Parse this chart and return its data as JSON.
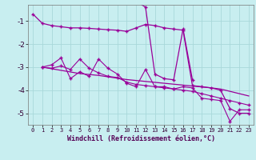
{
  "x": [
    0,
    1,
    2,
    3,
    4,
    5,
    6,
    7,
    8,
    9,
    10,
    11,
    12,
    13,
    14,
    15,
    16,
    17,
    18,
    19,
    20,
    21,
    22,
    23
  ],
  "line1": [
    -0.7,
    -1.1,
    -1.2,
    -1.25,
    -1.3,
    -1.3,
    -1.32,
    -1.35,
    -1.38,
    -1.4,
    -1.45,
    -1.3,
    -1.15,
    -1.2,
    -1.3,
    -1.35,
    -1.4,
    -3.8,
    -3.85,
    -3.9,
    -4.0,
    -4.8,
    -5.0,
    -5.0
  ],
  "line2": [
    null,
    null,
    null,
    null,
    null,
    null,
    null,
    null,
    null,
    null,
    null,
    -0.15,
    -0.4,
    -3.3,
    -3.5,
    -3.55,
    -1.35,
    -3.55,
    null,
    null,
    null,
    null,
    null,
    null
  ],
  "line3": [
    null,
    -3.0,
    -2.9,
    -2.6,
    -3.5,
    -3.2,
    -3.4,
    -2.65,
    -3.05,
    -3.3,
    -3.7,
    -3.85,
    -3.1,
    -3.85,
    -3.85,
    -3.95,
    -3.85,
    -3.9,
    -4.35,
    -4.4,
    -4.45,
    -5.35,
    -4.85,
    -4.85
  ],
  "line4": [
    null,
    -3.0,
    -3.05,
    -2.95,
    -3.1,
    -2.65,
    -3.05,
    -3.25,
    -3.4,
    -3.45,
    -3.65,
    -3.75,
    -3.8,
    -3.85,
    -3.9,
    -3.95,
    -4.0,
    -4.05,
    -4.15,
    -4.25,
    -4.35,
    -4.45,
    -4.55,
    -4.65
  ],
  "line5": [
    null,
    -3.0,
    -3.07,
    -3.14,
    -3.21,
    -3.28,
    -3.32,
    -3.36,
    -3.42,
    -3.48,
    -3.54,
    -3.58,
    -3.62,
    -3.66,
    -3.7,
    -3.74,
    -3.78,
    -3.82,
    -3.86,
    -3.9,
    -3.95,
    -4.05,
    -4.15,
    -4.25
  ],
  "line_color": "#990099",
  "bg_color": "#c8eef0",
  "grid_color": "#a8d8da",
  "xlabel": "Windchill (Refroidissement éolien,°C)",
  "ylim": [
    -5.5,
    -0.3
  ],
  "xlim": [
    -0.5,
    23.5
  ],
  "yticks": [
    -5,
    -4,
    -3,
    -2,
    -1
  ],
  "xticks": [
    0,
    1,
    2,
    3,
    4,
    5,
    6,
    7,
    8,
    9,
    10,
    11,
    12,
    13,
    14,
    15,
    16,
    17,
    18,
    19,
    20,
    21,
    22,
    23
  ]
}
